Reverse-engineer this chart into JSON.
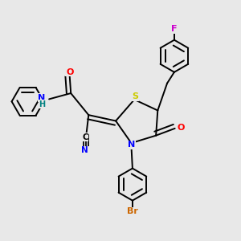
{
  "background_color": "#e8e8e8",
  "atom_colors": {
    "O": "#ff0000",
    "N": "#0000ff",
    "S": "#cccc00",
    "F": "#cc00cc",
    "Br": "#cc6600",
    "C": "#000000",
    "H": "#008080"
  }
}
